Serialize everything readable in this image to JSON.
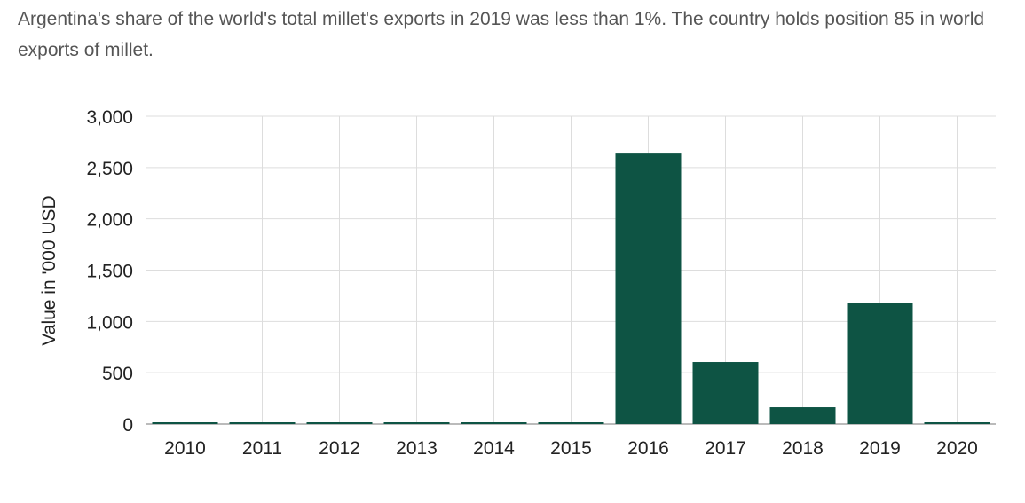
{
  "description": "Argentina's share of the world's total millet's exports in 2019 was less than 1%. The country holds position 85 in world exports of millet.",
  "chart_data": {
    "type": "bar",
    "title": "",
    "xlabel": "",
    "ylabel": "Value in '000 USD",
    "categories": [
      "2010",
      "2011",
      "2012",
      "2013",
      "2014",
      "2015",
      "2016",
      "2017",
      "2018",
      "2019",
      "2020"
    ],
    "values": [
      0,
      0,
      0,
      0,
      0,
      0,
      2636,
      605,
      164,
      1184,
      0
    ],
    "ylim": [
      0,
      3000
    ],
    "yticks": [
      0,
      500,
      1000,
      1500,
      2000,
      2500,
      3000
    ],
    "ytick_labels": [
      "0",
      "500",
      "1,000",
      "1,500",
      "2,000",
      "2,500",
      "3,000"
    ],
    "grid": true,
    "bar_color": "#0e5444"
  }
}
